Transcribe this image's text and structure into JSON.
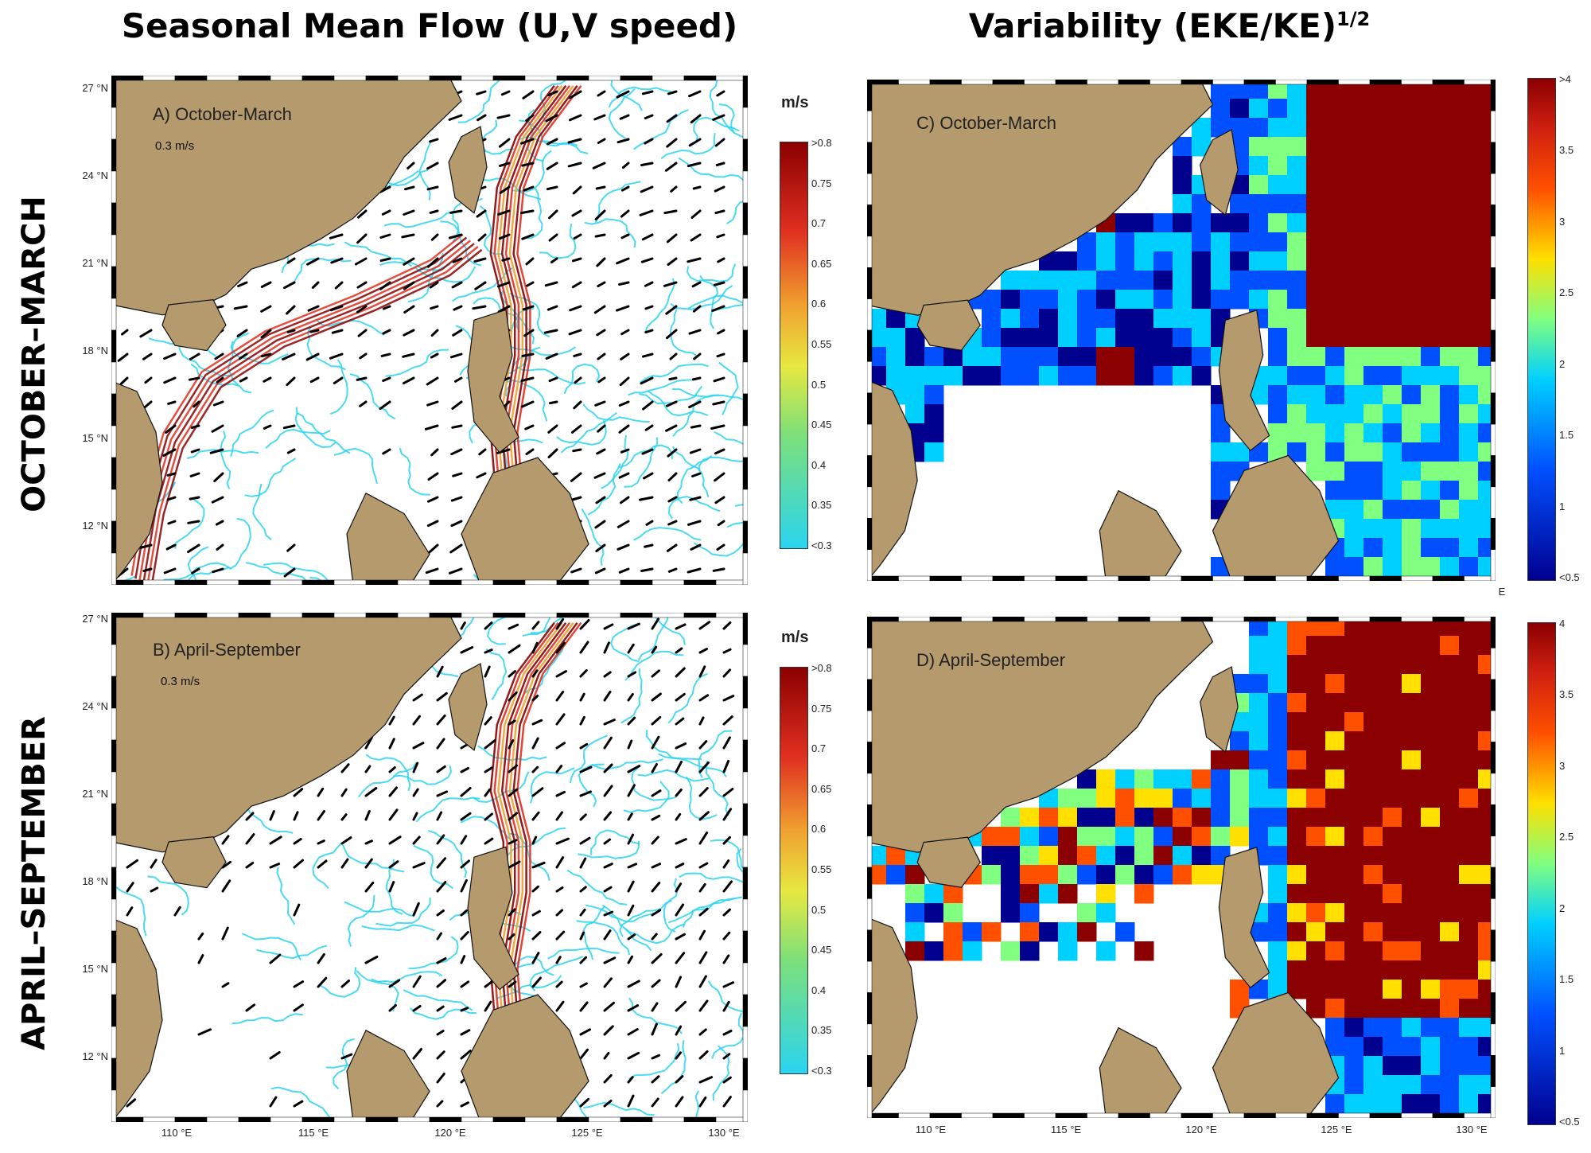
{
  "headers": {
    "left": "Seasonal Mean Flow (U,V speed)",
    "right_main": "Variability (EKE/KE)",
    "right_sup": "1/2"
  },
  "row_labels": {
    "top": "OCTOBER–MARCH",
    "bottom": "APRIL–SEPTEMBER"
  },
  "panels": {
    "A": {
      "label": "A) October-March",
      "scale": "0.3 m/s"
    },
    "B": {
      "label": "B) April-September",
      "scale": "0.3 m/s"
    },
    "C": {
      "label": "C) October-March"
    },
    "D": {
      "label": "D) April-September"
    }
  },
  "axes": {
    "lat_labels": [
      "27 °N",
      "24 °N",
      "21 °N",
      "18 °N",
      "15 °N",
      "12 °N"
    ],
    "lon_labels": [
      "110 °E",
      "115 °E",
      "120 °E",
      "125 °E",
      "130 °E"
    ],
    "extra_e": "E"
  },
  "colorbar_speed": {
    "unit": "m/s",
    "ticks": [
      ">0.8",
      "0.75",
      "0.7",
      "0.65",
      "0.6",
      "0.55",
      "0.5",
      "0.45",
      "0.4",
      "0.35",
      "<0.3"
    ]
  },
  "colorbar_var_top": {
    "ticks": [
      ">4",
      "3.5",
      "3",
      "2.5",
      "2",
      "1.5",
      "1",
      "<0.5"
    ]
  },
  "colorbar_var_bottom": {
    "ticks": [
      "4",
      "3.5",
      "3",
      "2.5",
      "2",
      "1.5",
      "1",
      "<0.5"
    ]
  },
  "colors": {
    "land": "#b59a6e",
    "speed_scale": [
      "#2ad4f0",
      "#7de07a",
      "#e8e840",
      "#f0a030",
      "#e03020",
      "#8b0000"
    ],
    "var_scale": [
      "#00008f",
      "#0050ff",
      "#00d0ff",
      "#80ff80",
      "#ffe000",
      "#ff5000",
      "#8b0000"
    ]
  }
}
